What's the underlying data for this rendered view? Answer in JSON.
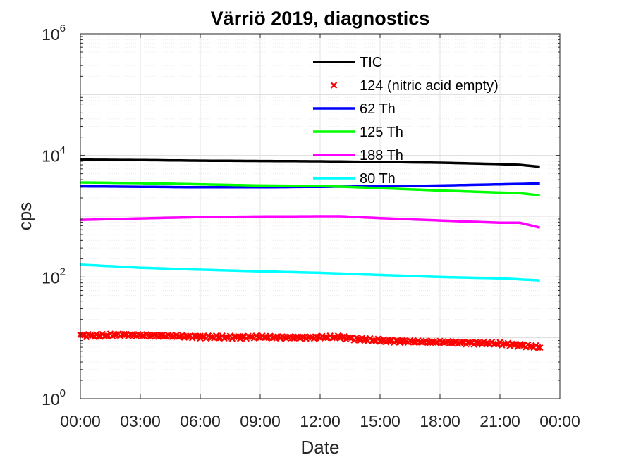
{
  "chart_data": {
    "type": "line",
    "title": "Värriö 2019, diagnostics",
    "xlabel": "Date",
    "ylabel": "cps",
    "y_scale": "log",
    "ylim": [
      1,
      1000000
    ],
    "xlim": [
      "00:00",
      "24:00"
    ],
    "x_tick_labels": [
      "00:00",
      "03:00",
      "06:00",
      "09:00",
      "12:00",
      "15:00",
      "18:00",
      "21:00",
      "00:00"
    ],
    "y_ticks": [
      {
        "base": "10",
        "exp": "0",
        "value": 1
      },
      {
        "base": "10",
        "exp": "2",
        "value": 100
      },
      {
        "base": "10",
        "exp": "4",
        "value": 10000
      },
      {
        "base": "10",
        "exp": "6",
        "value": 1000000
      }
    ],
    "grid": true,
    "minor_grid": true,
    "legend_position": "top-right",
    "x_unit": "hours",
    "series": [
      {
        "name": "TIC",
        "color": "#000000",
        "style": "line",
        "x": [
          0,
          3,
          6,
          9,
          12,
          15,
          18,
          21,
          22,
          23
        ],
        "y": [
          8500,
          8400,
          8200,
          8100,
          8000,
          7800,
          7600,
          7200,
          7000,
          6500
        ]
      },
      {
        "name": "124 (nitric acid empty)",
        "color": "#ff0000",
        "style": "marker",
        "x": [
          0,
          1,
          2,
          3,
          4,
          5,
          6,
          7,
          8,
          9,
          10,
          11,
          12,
          13,
          14,
          15,
          16,
          17,
          18,
          19,
          20,
          21,
          22,
          23
        ],
        "y": [
          11,
          10.8,
          11.3,
          11,
          10.8,
          10.6,
          10.4,
          10.2,
          10.3,
          10.3,
          10.2,
          10.1,
          10.2,
          10.3,
          9.5,
          9,
          8.8,
          8.6,
          8.5,
          8.3,
          8.2,
          8,
          7.6,
          7
        ]
      },
      {
        "name": "62 Th",
        "color": "#0000ff",
        "style": "line",
        "x": [
          0,
          3,
          6,
          9,
          12,
          15,
          18,
          21,
          23
        ],
        "y": [
          3100,
          3050,
          3000,
          3000,
          3050,
          3100,
          3200,
          3350,
          3450
        ]
      },
      {
        "name": "125 Th",
        "color": "#00ff00",
        "style": "line",
        "x": [
          0,
          3,
          6,
          9,
          12,
          15,
          18,
          21,
          22,
          23
        ],
        "y": [
          3600,
          3500,
          3350,
          3200,
          3150,
          2900,
          2650,
          2450,
          2400,
          2200
        ]
      },
      {
        "name": "188 Th",
        "color": "#ff00ff",
        "style": "line",
        "x": [
          0,
          3,
          6,
          9,
          12,
          13,
          15,
          18,
          21,
          22,
          23
        ],
        "y": [
          870,
          920,
          970,
          990,
          1000,
          1000,
          930,
          850,
          780,
          780,
          650
        ]
      },
      {
        "name": "80 Th",
        "color": "#00ffff",
        "style": "line",
        "x": [
          0,
          3,
          6,
          9,
          12,
          15,
          18,
          21,
          23
        ],
        "y": [
          160,
          142,
          132,
          124,
          117,
          108,
          100,
          95,
          88
        ]
      }
    ]
  }
}
